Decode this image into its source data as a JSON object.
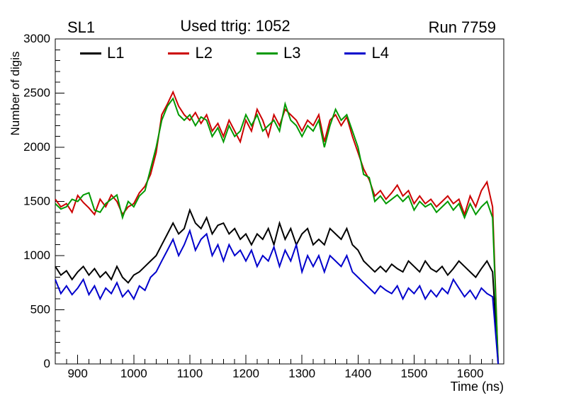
{
  "header": {
    "left": "SL1",
    "right": "Run 7759"
  },
  "chart_data": {
    "type": "line",
    "title": "Used ttrig: 1052",
    "xlabel": "Time (ns)",
    "ylabel": "Number of digis",
    "xlim": [
      860,
      1660
    ],
    "ylim": [
      0,
      3000
    ],
    "x_ticks": [
      900,
      1000,
      1100,
      1200,
      1300,
      1400,
      1500,
      1600
    ],
    "y_ticks": [
      0,
      500,
      1000,
      1500,
      2000,
      2500,
      3000
    ],
    "x_minor_step": 20,
    "y_minor_step": 100,
    "grid": false,
    "legend_position": "top-inside",
    "x": [
      860,
      870,
      880,
      890,
      900,
      910,
      920,
      930,
      940,
      950,
      960,
      970,
      980,
      990,
      1000,
      1010,
      1020,
      1030,
      1040,
      1050,
      1060,
      1070,
      1080,
      1090,
      1100,
      1110,
      1120,
      1130,
      1140,
      1150,
      1160,
      1170,
      1180,
      1190,
      1200,
      1210,
      1220,
      1230,
      1240,
      1250,
      1260,
      1270,
      1280,
      1290,
      1300,
      1310,
      1320,
      1330,
      1340,
      1350,
      1360,
      1370,
      1380,
      1390,
      1400,
      1410,
      1420,
      1430,
      1440,
      1450,
      1460,
      1470,
      1480,
      1490,
      1500,
      1510,
      1520,
      1530,
      1540,
      1550,
      1560,
      1570,
      1580,
      1590,
      1600,
      1610,
      1620,
      1630,
      1640,
      1650
    ],
    "series": [
      {
        "name": "L1",
        "color": "#000000",
        "values": [
          900,
          820,
          860,
          780,
          850,
          900,
          820,
          880,
          800,
          850,
          780,
          900,
          800,
          750,
          820,
          850,
          900,
          950,
          1000,
          1100,
          1200,
          1300,
          1200,
          1250,
          1420,
          1300,
          1250,
          1350,
          1200,
          1280,
          1300,
          1200,
          1250,
          1150,
          1200,
          1100,
          1200,
          1150,
          1250,
          1100,
          1300,
          1150,
          1250,
          1100,
          1200,
          1250,
          1100,
          1150,
          1100,
          1250,
          1200,
          1150,
          1250,
          1100,
          1050,
          950,
          900,
          850,
          900,
          850,
          920,
          880,
          850,
          950,
          900,
          850,
          950,
          880,
          850,
          900,
          820,
          880,
          950,
          900,
          850,
          800,
          880,
          950,
          850,
          0
        ]
      },
      {
        "name": "L2",
        "color": "#cc0000",
        "values": [
          1520,
          1450,
          1480,
          1400,
          1555,
          1490,
          1440,
          1380,
          1520,
          1450,
          1560,
          1500,
          1380,
          1450,
          1480,
          1580,
          1640,
          1750,
          1950,
          2300,
          2400,
          2510,
          2380,
          2300,
          2250,
          2320,
          2220,
          2300,
          2150,
          2220,
          2100,
          2250,
          2150,
          2050,
          2250,
          2150,
          2350,
          2250,
          2100,
          2300,
          2200,
          2350,
          2300,
          2250,
          2150,
          2250,
          2200,
          2300,
          2050,
          2250,
          2300,
          2200,
          2280,
          2100,
          1950,
          1800,
          1700,
          1550,
          1600,
          1520,
          1580,
          1650,
          1550,
          1600,
          1480,
          1550,
          1480,
          1520,
          1450,
          1500,
          1550,
          1480,
          1520,
          1380,
          1550,
          1450,
          1600,
          1680,
          1450,
          0
        ]
      },
      {
        "name": "L3",
        "color": "#009900",
        "values": [
          1480,
          1430,
          1450,
          1520,
          1500,
          1560,
          1580,
          1420,
          1400,
          1480,
          1520,
          1560,
          1350,
          1500,
          1450,
          1550,
          1600,
          1800,
          2000,
          2250,
          2380,
          2450,
          2300,
          2250,
          2300,
          2200,
          2280,
          2250,
          2100,
          2180,
          2050,
          2200,
          2100,
          2150,
          2300,
          2200,
          2300,
          2150,
          2200,
          2250,
          2150,
          2400,
          2250,
          2200,
          2100,
          2200,
          2150,
          2250,
          2000,
          2200,
          2350,
          2250,
          2300,
          2150,
          2000,
          1750,
          1720,
          1500,
          1550,
          1480,
          1520,
          1560,
          1500,
          1550,
          1420,
          1500,
          1450,
          1480,
          1400,
          1450,
          1500,
          1420,
          1480,
          1350,
          1480,
          1380,
          1450,
          1500,
          1350,
          0
        ]
      },
      {
        "name": "L4",
        "color": "#0000cc",
        "values": [
          780,
          650,
          720,
          640,
          700,
          780,
          640,
          720,
          600,
          700,
          650,
          750,
          620,
          680,
          600,
          720,
          680,
          800,
          850,
          950,
          1050,
          1150,
          1000,
          1100,
          1230,
          1050,
          1150,
          1200,
          1000,
          1100,
          950,
          1100,
          1000,
          1050,
          950,
          1050,
          900,
          1000,
          950,
          1080,
          900,
          1050,
          950,
          1100,
          850,
          1000,
          900,
          1000,
          850,
          1000,
          950,
          900,
          1000,
          850,
          800,
          750,
          700,
          650,
          720,
          680,
          650,
          720,
          600,
          700,
          650,
          720,
          600,
          680,
          620,
          700,
          650,
          780,
          700,
          620,
          680,
          600,
          700,
          650,
          620,
          0
        ]
      }
    ]
  }
}
